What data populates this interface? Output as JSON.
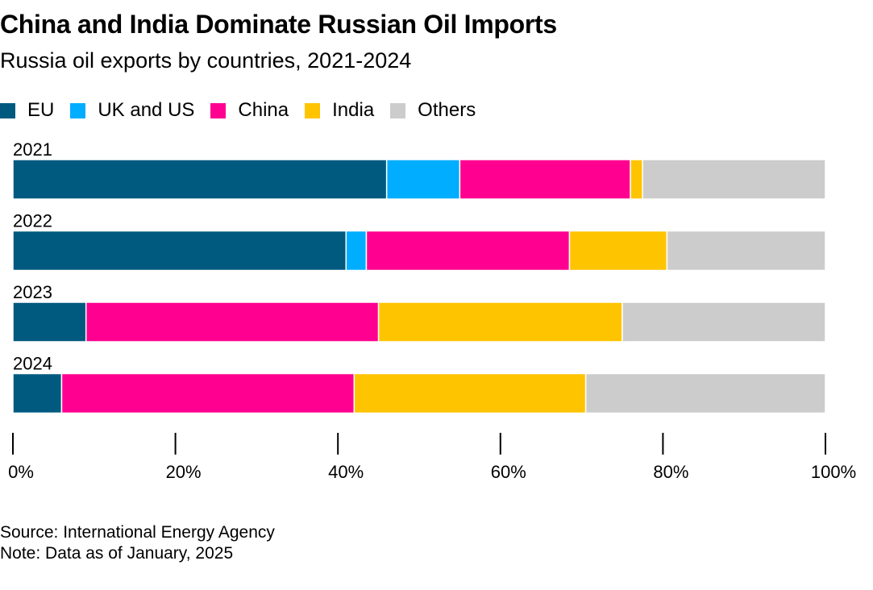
{
  "title": "China and India Dominate Russian Oil Imports",
  "subtitle": "Russia oil exports by countries, 2021-2024",
  "footer": {
    "source": "Source: International Energy Agency",
    "note": "Note: Data as of January, 2025"
  },
  "chart_data": {
    "type": "bar",
    "orientation": "horizontal",
    "stacked": true,
    "categories": [
      "2021",
      "2022",
      "2023",
      "2024"
    ],
    "series": [
      {
        "name": "EU",
        "color": "#005a80",
        "values": [
          46,
          41,
          9,
          6
        ]
      },
      {
        "name": "UK and US",
        "color": "#00adff",
        "values": [
          9,
          2.5,
          0,
          0
        ]
      },
      {
        "name": "China",
        "color": "#ff0090",
        "values": [
          21,
          25,
          36,
          36
        ]
      },
      {
        "name": "India",
        "color": "#ffc400",
        "values": [
          1.5,
          12,
          30,
          28.5
        ]
      },
      {
        "name": "Others",
        "color": "#cccccc",
        "values": [
          22.5,
          19.5,
          25,
          29.5
        ]
      }
    ],
    "xlim": [
      0,
      100
    ],
    "xticks": [
      0,
      20,
      40,
      60,
      80,
      100
    ],
    "xtick_labels": [
      "0%",
      "20%",
      "40%",
      "60%",
      "80%",
      "100%"
    ],
    "legend": "top-left",
    "grid": false
  }
}
